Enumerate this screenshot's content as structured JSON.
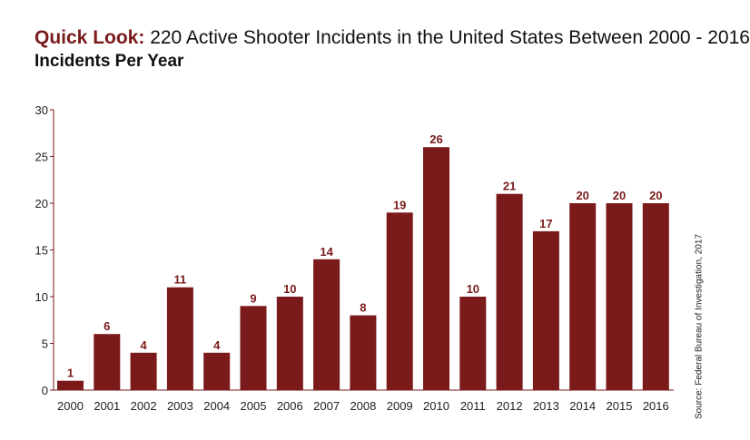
{
  "title_lead": "Quick Look:",
  "title_rest": " 220 Active Shooter Incidents in the United States Between 2000 - 2016",
  "subtitle": "Incidents Per Year",
  "source": "Source: Federal Bureau of Investigation, 2017",
  "colors": {
    "bar": "#7a1a1a",
    "label": "#7a1a1a",
    "axis": "#7a1a1a"
  },
  "chart_data": {
    "type": "bar",
    "title": "Quick Look: 220 Active Shooter Incidents in the United States Between 2000 - 2016",
    "subtitle": "Incidents Per Year",
    "categories": [
      "2000",
      "2001",
      "2002",
      "2003",
      "2004",
      "2005",
      "2006",
      "2007",
      "2008",
      "2009",
      "2010",
      "2011",
      "2012",
      "2013",
      "2014",
      "2015",
      "2016"
    ],
    "values": [
      1,
      6,
      4,
      11,
      4,
      9,
      10,
      14,
      8,
      19,
      26,
      10,
      21,
      17,
      20,
      20,
      20
    ],
    "xlabel": "",
    "ylabel": "",
    "ylim": [
      0,
      30
    ],
    "yticks": [
      0,
      5,
      10,
      15,
      20,
      25,
      30
    ],
    "grid": false,
    "legend": "none"
  }
}
